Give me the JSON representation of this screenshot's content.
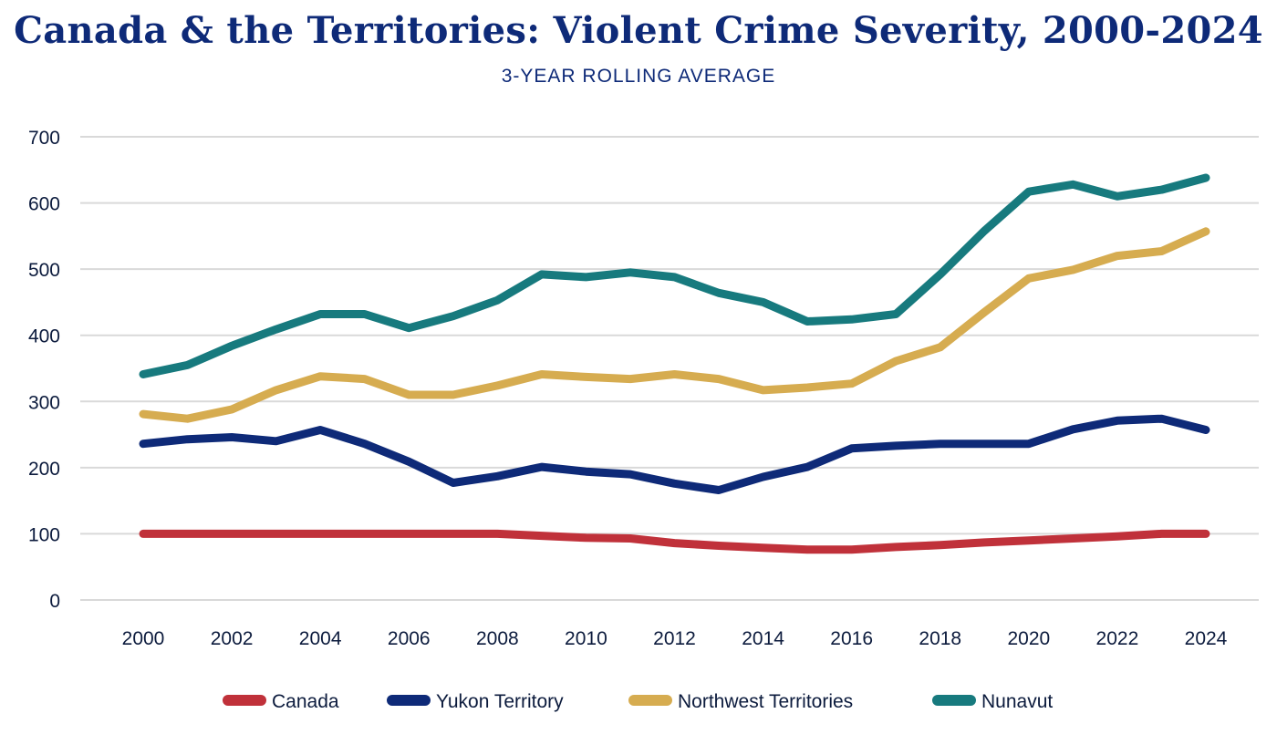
{
  "chart_data": {
    "type": "line",
    "title": "Canada & the Territories: Violent Crime Severity, 2000-2024",
    "subtitle": "3-YEAR ROLLING AVERAGE",
    "xlabel": "",
    "ylabel": "",
    "ylim": [
      0,
      700
    ],
    "yticks": [
      0,
      100,
      200,
      300,
      400,
      500,
      600,
      700
    ],
    "xticks": [
      2000,
      2002,
      2004,
      2006,
      2008,
      2010,
      2012,
      2014,
      2016,
      2018,
      2020,
      2022,
      2024
    ],
    "grid": true,
    "legend_position": "bottom",
    "x": [
      2000,
      2001,
      2002,
      2003,
      2004,
      2005,
      2006,
      2007,
      2008,
      2009,
      2010,
      2011,
      2012,
      2013,
      2014,
      2015,
      2016,
      2017,
      2018,
      2019,
      2020,
      2021,
      2022,
      2023,
      2024
    ],
    "series": [
      {
        "name": "Canada",
        "color": "#c0313a",
        "values": [
          100,
          100,
          100,
          100,
          100,
          100,
          100,
          100,
          100,
          97,
          94,
          93,
          86,
          82,
          79,
          76,
          76,
          80,
          83,
          87,
          90,
          93,
          96,
          100,
          100
        ]
      },
      {
        "name": "Yukon Territory",
        "color": "#0e2a78",
        "values": [
          236,
          243,
          246,
          240,
          257,
          236,
          209,
          177,
          187,
          201,
          194,
          190,
          176,
          166,
          186,
          201,
          229,
          233,
          236,
          236,
          236,
          258,
          271,
          274,
          257
        ]
      },
      {
        "name": "Northwest Territories",
        "color": "#d6ac50",
        "values": [
          281,
          274,
          288,
          317,
          338,
          334,
          310,
          310,
          324,
          341,
          337,
          334,
          341,
          334,
          317,
          321,
          327,
          361,
          382,
          435,
          486,
          499,
          520,
          527,
          557
        ]
      },
      {
        "name": "Nunavut",
        "color": "#177a7e",
        "values": [
          341,
          355,
          384,
          409,
          432,
          432,
          411,
          429,
          453,
          492,
          488,
          495,
          488,
          464,
          450,
          421,
          424,
          432,
          492,
          558,
          617,
          628,
          610,
          620,
          638
        ]
      }
    ]
  }
}
